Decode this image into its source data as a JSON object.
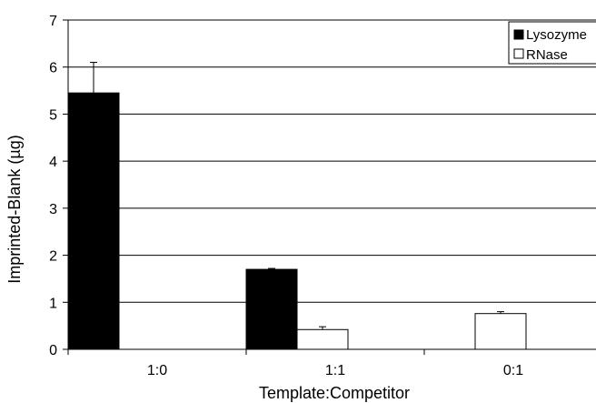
{
  "chart_data": {
    "type": "bar",
    "categories": [
      "1:0",
      "1:1",
      "0:1"
    ],
    "series": [
      {
        "name": "Lysozyme",
        "values": [
          5.45,
          1.7,
          null
        ],
        "errors": [
          0.65,
          0.02,
          null
        ],
        "color": "#000000"
      },
      {
        "name": "RNase",
        "values": [
          null,
          0.42,
          0.76
        ],
        "errors": [
          null,
          0.06,
          0.04
        ],
        "color": "#ffffff"
      }
    ],
    "xlabel": "Template:Competitor",
    "ylabel": "Imprinted-Blank (µg)",
    "ylim": [
      0,
      7
    ],
    "yticks": [
      0,
      1,
      2,
      3,
      4,
      5,
      6,
      7
    ],
    "grid": true,
    "legend_position": "top-right"
  }
}
